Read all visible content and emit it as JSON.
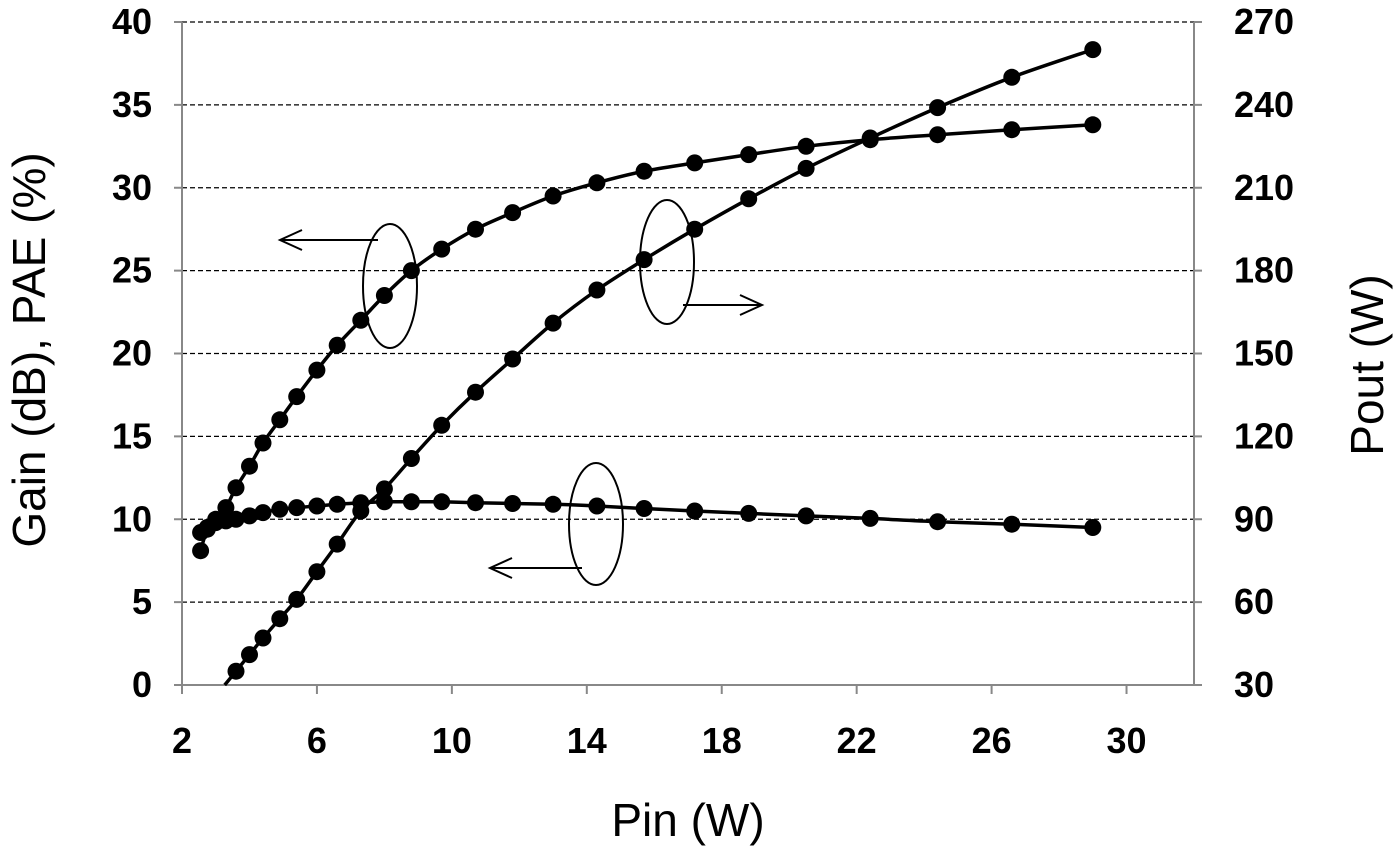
{
  "chart_data": {
    "type": "line",
    "xlabel": "Pin (W)",
    "ylabel": "Gain (dB), PAE (%)",
    "y2label": "Pout (W)",
    "xlim": [
      2,
      32
    ],
    "ylim": [
      0,
      40
    ],
    "y2lim": [
      30,
      270
    ],
    "xticks": [
      "2",
      "6",
      "10",
      "14",
      "18",
      "22",
      "26",
      "30"
    ],
    "yticks": [
      "0",
      "5",
      "10",
      "15",
      "20",
      "25",
      "30",
      "35",
      "40"
    ],
    "y2ticks": [
      "30",
      "60",
      "90",
      "120",
      "150",
      "180",
      "210",
      "240",
      "270"
    ],
    "grid": "horizontal dashed",
    "series": [
      {
        "axis": "left",
        "x": [
          2.55,
          2.75,
          3.0,
          3.3,
          3.6,
          4.0,
          4.4,
          4.9,
          5.4,
          6.0,
          6.6,
          7.3,
          8.0,
          8.8,
          9.7,
          10.7,
          11.8,
          13.0,
          14.3,
          15.7,
          17.2,
          18.8,
          20.5,
          22.4,
          24.4,
          26.6,
          29.0
        ],
        "y": [
          8.1,
          9.4,
          10.0,
          10.7,
          11.9,
          13.2,
          14.6,
          16.0,
          17.4,
          19.0,
          20.5,
          22.0,
          23.5,
          25.0,
          26.3,
          27.5,
          28.5,
          29.5,
          30.3,
          31.0,
          31.5,
          32.0,
          32.5,
          32.9,
          33.2,
          33.5,
          33.8
        ]
      },
      {
        "axis": "left",
        "x": [
          2.55,
          2.75,
          3.0,
          3.3,
          3.6,
          4.0,
          4.4,
          4.9,
          5.4,
          6.0,
          6.6,
          7.3,
          8.0,
          8.8,
          9.7,
          10.7,
          11.8,
          13.0,
          14.3,
          15.7,
          17.2,
          18.8,
          20.5,
          22.4,
          24.4,
          26.6,
          29.0
        ],
        "y": [
          9.2,
          9.5,
          9.8,
          9.9,
          10.0,
          10.2,
          10.4,
          10.6,
          10.7,
          10.8,
          10.9,
          11.0,
          11.05,
          11.05,
          11.05,
          11.0,
          10.95,
          10.9,
          10.8,
          10.65,
          10.5,
          10.35,
          10.2,
          10.05,
          9.85,
          9.7,
          9.5
        ]
      },
      {
        "axis": "right",
        "x": [
          3.6,
          4.0,
          4.4,
          4.9,
          5.4,
          6.0,
          6.6,
          7.3,
          8.0,
          8.8,
          9.7,
          10.7,
          11.8,
          13.0,
          14.3,
          15.7,
          17.2,
          18.8,
          20.5,
          22.4,
          24.4,
          26.6,
          29.0
        ],
        "y": [
          35,
          41,
          47,
          54,
          61,
          71,
          81,
          93,
          101,
          112,
          124,
          136,
          148,
          161,
          173,
          184,
          195,
          206,
          217,
          228,
          239,
          250,
          260
        ]
      }
    ]
  }
}
